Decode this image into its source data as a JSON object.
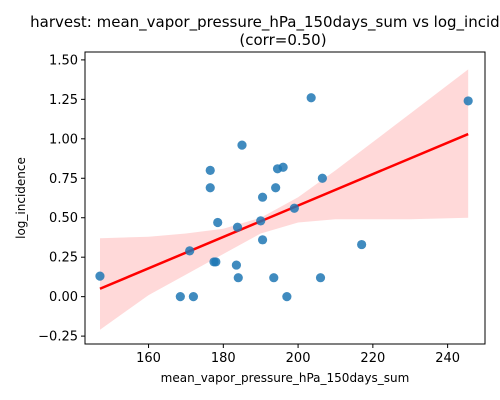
{
  "chart_data": {
    "type": "scatter",
    "title_line1": "harvest: mean_vapor_pressure_hPa_150days_sum vs log_incidence",
    "title_line2": "(corr=0.50)",
    "xlabel": "mean_vapor_pressure_hPa_150days_sum",
    "ylabel": "log_incidence",
    "xlim": [
      143,
      250
    ],
    "ylim": [
      -0.3,
      1.55
    ],
    "x_ticks": [
      160,
      180,
      200,
      220,
      240
    ],
    "y_ticks": [
      -0.25,
      0.0,
      0.25,
      0.5,
      0.75,
      1.0,
      1.25,
      1.5
    ],
    "y_tick_labels": [
      "−0.25",
      "0.00",
      "0.25",
      "0.50",
      "0.75",
      "1.00",
      "1.25",
      "1.50"
    ],
    "grid": false,
    "points": [
      {
        "x": 147.0,
        "y": 0.13
      },
      {
        "x": 168.5,
        "y": 0.0
      },
      {
        "x": 171.0,
        "y": 0.29
      },
      {
        "x": 172.0,
        "y": 0.0
      },
      {
        "x": 176.5,
        "y": 0.8
      },
      {
        "x": 176.5,
        "y": 0.69
      },
      {
        "x": 177.5,
        "y": 0.22
      },
      {
        "x": 178.0,
        "y": 0.22
      },
      {
        "x": 178.5,
        "y": 0.47
      },
      {
        "x": 183.5,
        "y": 0.2
      },
      {
        "x": 183.8,
        "y": 0.44
      },
      {
        "x": 184.0,
        "y": 0.12
      },
      {
        "x": 185.0,
        "y": 0.96
      },
      {
        "x": 190.0,
        "y": 0.48
      },
      {
        "x": 190.5,
        "y": 0.63
      },
      {
        "x": 190.5,
        "y": 0.36
      },
      {
        "x": 193.5,
        "y": 0.12
      },
      {
        "x": 194.0,
        "y": 0.69
      },
      {
        "x": 194.5,
        "y": 0.81
      },
      {
        "x": 196.0,
        "y": 0.82
      },
      {
        "x": 197.0,
        "y": 0.0
      },
      {
        "x": 199.0,
        "y": 0.56
      },
      {
        "x": 203.5,
        "y": 1.26
      },
      {
        "x": 206.0,
        "y": 0.12
      },
      {
        "x": 206.5,
        "y": 0.75
      },
      {
        "x": 217.0,
        "y": 0.33
      },
      {
        "x": 245.5,
        "y": 1.24
      }
    ],
    "regression_line": {
      "x": [
        147,
        245.5
      ],
      "y": [
        0.05,
        1.03
      ]
    },
    "confidence_band": {
      "x": [
        147,
        160,
        170,
        180,
        190,
        200,
        210,
        220,
        230,
        245.5
      ],
      "lower": [
        -0.21,
        0.01,
        0.14,
        0.27,
        0.4,
        0.47,
        0.49,
        0.49,
        0.49,
        0.5
      ],
      "upper": [
        0.37,
        0.38,
        0.4,
        0.43,
        0.5,
        0.63,
        0.8,
        0.98,
        1.16,
        1.44
      ]
    },
    "colors": {
      "points": "#1f77b4",
      "line": "#ff0000",
      "band": "#ffc0c0"
    }
  }
}
